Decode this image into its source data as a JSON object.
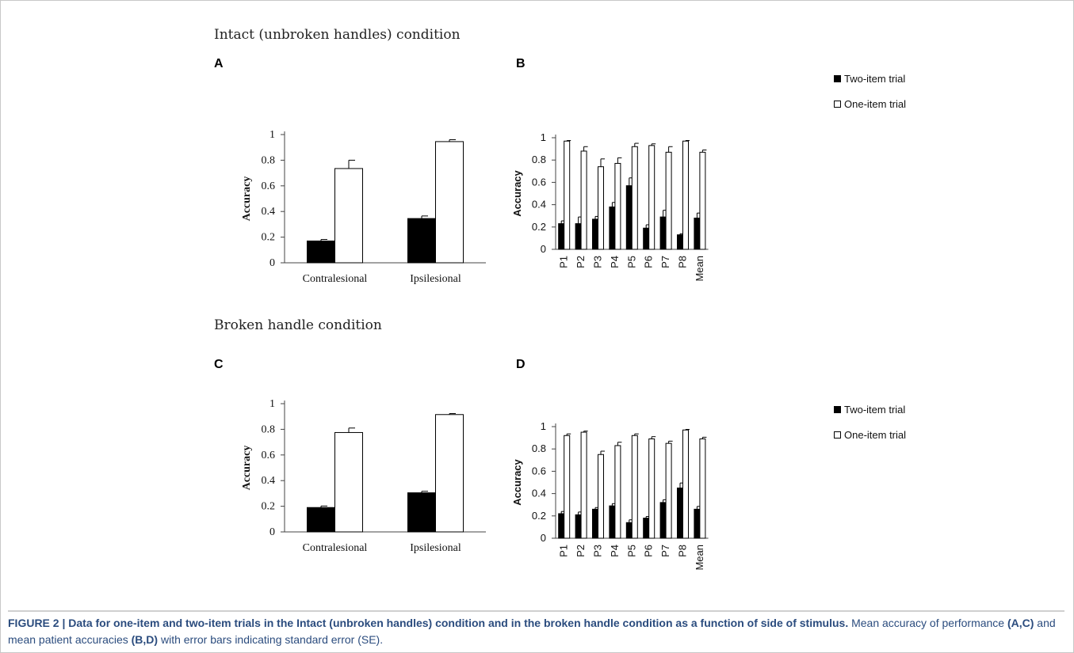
{
  "sections": {
    "top_title": "Intact (unbroken handles) condition",
    "bottom_title": "Broken handle condition"
  },
  "colors": {
    "two_item": "#000000",
    "one_item": "#ffffff",
    "caption": "#2b4c7e"
  },
  "chart_data": [
    {
      "panel": "A",
      "type": "bar",
      "categories": [
        "Contralesional",
        "Ipsilesional"
      ],
      "series": [
        {
          "values": [
            0.17,
            0.345
          ],
          "errors": [
            0.012,
            0.02
          ]
        },
        {
          "values": [
            0.735,
            0.945
          ],
          "errors": [
            0.065,
            0.015
          ]
        }
      ],
      "ylabel": "Accuracy",
      "ylim": [
        0,
        1
      ],
      "yticks": [
        "0",
        "0.2",
        "0.4",
        "0.6",
        "0.8",
        "1"
      ]
    },
    {
      "panel": "B",
      "type": "bar",
      "categories": [
        "P1",
        "P2",
        "P3",
        "P4",
        "P5",
        "P6",
        "P7",
        "P8",
        "Mean"
      ],
      "series": [
        {
          "name": "Two-item trial",
          "values": [
            0.23,
            0.23,
            0.27,
            0.38,
            0.57,
            0.19,
            0.29,
            0.13,
            0.28
          ],
          "errors": [
            0.025,
            0.06,
            0.025,
            0.04,
            0.07,
            0.03,
            0.06,
            0.01,
            0.045
          ]
        },
        {
          "name": "One-item trial",
          "values": [
            0.97,
            0.88,
            0.74,
            0.77,
            0.92,
            0.93,
            0.87,
            0.97,
            0.87
          ],
          "errors": [
            0.005,
            0.04,
            0.07,
            0.05,
            0.03,
            0.015,
            0.05,
            0.005,
            0.02
          ]
        }
      ],
      "ylabel": "Accuracy",
      "ylim": [
        0,
        1
      ],
      "yticks": [
        "0",
        "0.2",
        "0.4",
        "0.6",
        "0.8",
        "1"
      ],
      "legend_position": "right"
    },
    {
      "panel": "C",
      "type": "bar",
      "categories": [
        "Contralesional",
        "Ipsilesional"
      ],
      "series": [
        {
          "values": [
            0.19,
            0.305
          ],
          "errors": [
            0.012,
            0.012
          ]
        },
        {
          "values": [
            0.775,
            0.915
          ],
          "errors": [
            0.035,
            0.008
          ]
        }
      ],
      "ylabel": "Accuracy",
      "ylim": [
        0,
        1
      ],
      "yticks": [
        "0",
        "0.2",
        "0.4",
        "0.6",
        "0.8",
        "1"
      ]
    },
    {
      "panel": "D",
      "type": "bar",
      "categories": [
        "P1",
        "P2",
        "P3",
        "P4",
        "P5",
        "P6",
        "P7",
        "P8",
        "Mean"
      ],
      "series": [
        {
          "name": "Two-item trial",
          "values": [
            0.22,
            0.21,
            0.26,
            0.29,
            0.14,
            0.18,
            0.32,
            0.45,
            0.26
          ],
          "errors": [
            0.02,
            0.025,
            0.015,
            0.02,
            0.025,
            0.015,
            0.025,
            0.045,
            0.025
          ]
        },
        {
          "name": "One-item trial",
          "values": [
            0.92,
            0.95,
            0.75,
            0.83,
            0.92,
            0.89,
            0.85,
            0.97,
            0.89
          ],
          "errors": [
            0.015,
            0.01,
            0.03,
            0.03,
            0.015,
            0.02,
            0.02,
            0.005,
            0.015
          ]
        }
      ],
      "ylabel": "Accuracy",
      "ylim": [
        0,
        1
      ],
      "yticks": [
        "0",
        "0.2",
        "0.4",
        "0.6",
        "0.8",
        "1"
      ],
      "legend_position": "right"
    }
  ],
  "caption": {
    "figure_label": "FIGURE 2 | ",
    "bold_text": "Data for one-item and two-item trials in the Intact (unbroken handles) condition and in the broken handle condition as a function of side of stimulus.",
    "text_1": " Mean accuracy of performance ",
    "ref_1": "(A,C)",
    "text_2": " and mean patient accuracies ",
    "ref_2": "(B,D)",
    "text_3": " with error bars indicating standard error (SE)."
  }
}
